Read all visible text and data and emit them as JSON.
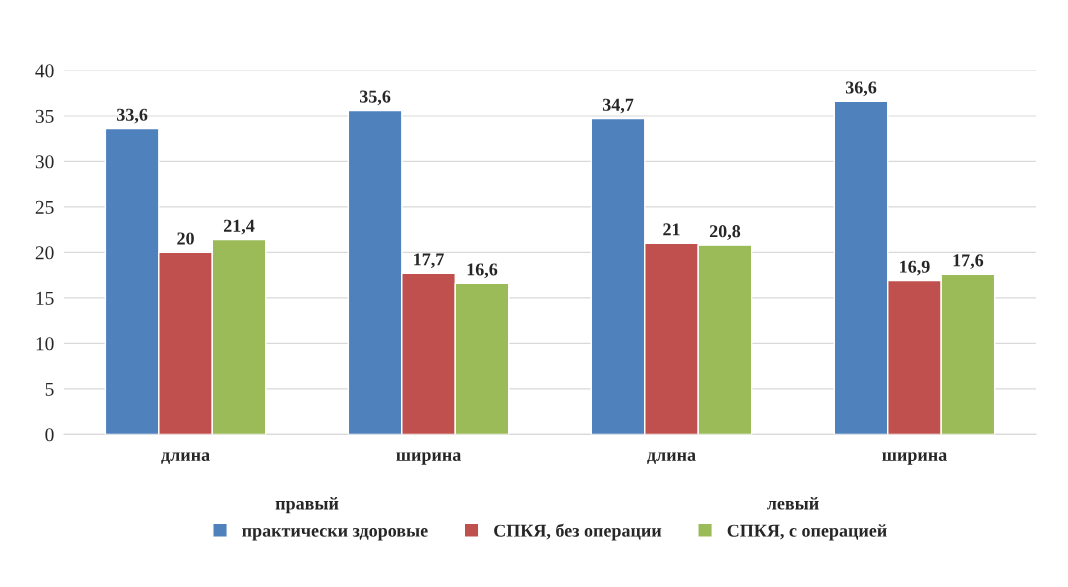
{
  "chart_data": {
    "type": "bar",
    "categories": [
      "длина",
      "ширина",
      "длина",
      "ширина"
    ],
    "series": [
      {
        "name": "практически здоровые",
        "color": "#4f81bd",
        "values": [
          33.6,
          35.6,
          34.7,
          36.6
        ],
        "value_labels": [
          "33,6",
          "35,6",
          "34,7",
          "36,6"
        ]
      },
      {
        "name": "СПКЯ, без операции",
        "color": "#c0504d",
        "values": [
          20,
          17.7,
          21,
          16.9
        ],
        "value_labels": [
          "20",
          "17,7",
          "21",
          "16,9"
        ]
      },
      {
        "name": "СПКЯ, с операцией",
        "color": "#9bbb59",
        "values": [
          21.4,
          16.6,
          20.8,
          17.6
        ],
        "value_labels": [
          "21,4",
          "16,6",
          "20,8",
          "17,6"
        ]
      }
    ],
    "annotations": [
      "правый",
      "левый"
    ],
    "ylim": [
      0,
      40
    ],
    "yticks": [
      0,
      5,
      10,
      15,
      20,
      25,
      30,
      35,
      40
    ],
    "grid": "y",
    "legend": "bottom"
  }
}
